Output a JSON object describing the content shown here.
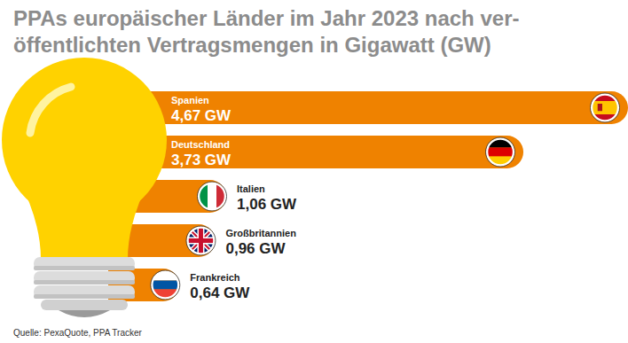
{
  "chart_data": {
    "type": "bar",
    "orientation": "horizontal",
    "title": "PPAs europäischer Länder im Jahr 2023 nach ver-\nöffentlichten Vertragsmengen in Gigawatt (GW)",
    "source": "Quelle: PexaQuote, PPA Tracker",
    "categories": [
      "Spanien",
      "Deutschland",
      "Italien",
      "Großbritannien",
      "Frankreich"
    ],
    "values": [
      4.67,
      3.73,
      1.06,
      0.96,
      0.64
    ],
    "value_labels": [
      "4,67 GW",
      "3,73 GW",
      "1,06 GW",
      "0,96 GW",
      "0,64 GW"
    ],
    "color": "#ef8200",
    "xlim": [
      0,
      4.67
    ],
    "data_labels": true,
    "tick_labels": false,
    "grid": false
  }
}
